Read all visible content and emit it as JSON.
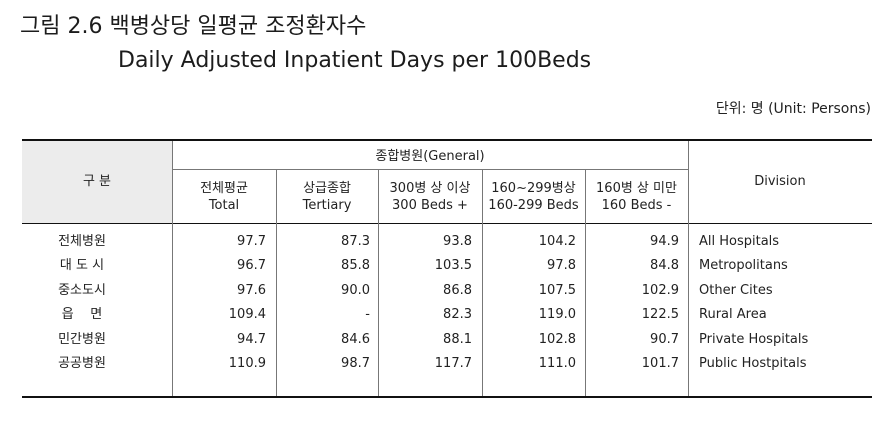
{
  "title": {
    "korean": "그림 2.6 백병상당 일평균 조정환자수",
    "english": "Daily Adjusted Inpatient Days per 100Beds"
  },
  "unit": "단위: 명 (Unit: Persons)",
  "table": {
    "header": {
      "group_kr": "구   분",
      "general": "종합병원(General)",
      "division": "Division",
      "columns": [
        {
          "kr": "전체평균",
          "en": "Total"
        },
        {
          "kr": "상급종합",
          "en": "Tertiary"
        },
        {
          "kr": "300병 상 이상",
          "en": "300 Beds +"
        },
        {
          "kr": "160~299병상",
          "en": "160-299 Beds"
        },
        {
          "kr": "160병 상 미만",
          "en": "160 Beds -"
        }
      ]
    },
    "rows": [
      {
        "kr": "전체병원",
        "values": [
          "97.7",
          "87.3",
          "93.8",
          "104.2",
          "94.9"
        ],
        "en": "All Hospitals"
      },
      {
        "kr": "대 도 시",
        "values": [
          "96.7",
          "85.8",
          "103.5",
          "97.8",
          "84.8"
        ],
        "en": "Metropolitans"
      },
      {
        "kr": "중소도시",
        "values": [
          "97.6",
          "90.0",
          "86.8",
          "107.5",
          "102.9"
        ],
        "en": "Other Cites"
      },
      {
        "kr": "읍    면",
        "values": [
          "109.4",
          "-",
          "82.3",
          "119.0",
          "122.5"
        ],
        "en": "Rural Area"
      },
      {
        "kr": "민간병원",
        "values": [
          "94.7",
          "84.6",
          "88.1",
          "102.8",
          "90.7"
        ],
        "en": "Private Hospitals"
      },
      {
        "kr": "공공병원",
        "values": [
          "110.9",
          "98.7",
          "117.7",
          "111.0",
          "101.7"
        ],
        "en": "Public Hostpitals"
      }
    ]
  }
}
